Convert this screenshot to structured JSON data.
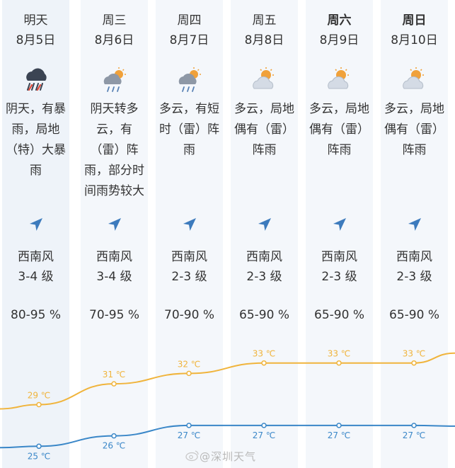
{
  "forecast": {
    "days": [
      {
        "day": "明天",
        "date": "8月5日",
        "bold": false,
        "icon": "heavy-rain-cloud-icon",
        "desc": "阴天，有暴雨，局地（特）大暴雨",
        "wind_dir": "西南风",
        "wind_level": "3-4 级",
        "humidity": "80-95 %",
        "high": "29 ℃",
        "low": "25 ℃"
      },
      {
        "day": "周三",
        "date": "8月6日",
        "bold": false,
        "icon": "sun-cloud-rain-icon",
        "desc": "阴天转多云，有（雷）阵雨，部分时间雨势较大",
        "wind_dir": "西南风",
        "wind_level": "3-4 级",
        "humidity": "70-95 %",
        "high": "31 ℃",
        "low": "26 ℃"
      },
      {
        "day": "周四",
        "date": "8月7日",
        "bold": false,
        "icon": "sun-cloud-rain-icon",
        "desc": "多云，有短时（雷）阵雨",
        "wind_dir": "西南风",
        "wind_level": "2-3 级",
        "humidity": "70-90 %",
        "high": "32 ℃",
        "low": "27 ℃"
      },
      {
        "day": "周五",
        "date": "8月8日",
        "bold": false,
        "icon": "partly-cloudy-icon",
        "desc": "多云，局地偶有（雷）阵雨",
        "wind_dir": "西南风",
        "wind_level": "2-3 级",
        "humidity": "65-90 %",
        "high": "33 ℃",
        "low": "27 ℃"
      },
      {
        "day": "周六",
        "date": "8月9日",
        "bold": true,
        "icon": "partly-cloudy-icon",
        "desc": "多云，局地偶有（雷）阵雨",
        "wind_dir": "西南风",
        "wind_level": "2-3 级",
        "humidity": "65-90 %",
        "high": "33 ℃",
        "low": "27 ℃"
      },
      {
        "day": "周日",
        "date": "8月10日",
        "bold": true,
        "icon": "partly-cloudy-icon",
        "desc": "多云，局地偶有（雷）阵雨",
        "wind_dir": "西南风",
        "wind_level": "2-3 级",
        "humidity": "65-90 %",
        "high": "33 ℃",
        "low": "27 ℃"
      }
    ]
  },
  "chart_data": {
    "type": "line",
    "categories": [
      "8月5日",
      "8月6日",
      "8月7日",
      "8月8日",
      "8月9日",
      "8月10日"
    ],
    "series": [
      {
        "values": [
          29,
          31,
          32,
          33,
          33,
          33
        ],
        "color": "#f0b43c"
      },
      {
        "values": [
          25,
          26,
          27,
          27,
          27,
          27
        ],
        "color": "#3a87c8"
      }
    ],
    "ylim": [
      24,
      34
    ],
    "grid": false
  },
  "watermark": {
    "text": "@深圳天气",
    "icon": "weibo-icon"
  },
  "colors": {
    "high_line": "#f0b43c",
    "low_line": "#3a87c8",
    "column_bg": "#f4f7fb",
    "wind_arrow": "#3d7bbd"
  }
}
